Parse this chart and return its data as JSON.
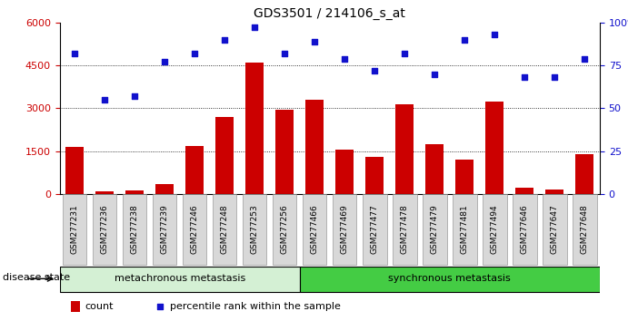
{
  "title": "GDS3501 / 214106_s_at",
  "samples": [
    "GSM277231",
    "GSM277236",
    "GSM277238",
    "GSM277239",
    "GSM277246",
    "GSM277248",
    "GSM277253",
    "GSM277256",
    "GSM277466",
    "GSM277469",
    "GSM277477",
    "GSM277478",
    "GSM277479",
    "GSM277481",
    "GSM277494",
    "GSM277646",
    "GSM277647",
    "GSM277648"
  ],
  "counts": [
    1650,
    100,
    130,
    350,
    1700,
    2700,
    4600,
    2950,
    3300,
    1550,
    1300,
    3150,
    1750,
    1200,
    3250,
    230,
    160,
    1400
  ],
  "percentiles": [
    82,
    55,
    57,
    77,
    82,
    90,
    97,
    82,
    89,
    79,
    72,
    82,
    70,
    90,
    93,
    68,
    68,
    79
  ],
  "group1_count": 8,
  "group1_label": "metachronous metastasis",
  "group2_label": "synchronous metastasis",
  "bar_color": "#cc0000",
  "dot_color": "#1111cc",
  "group1_bg": "#d4f0d4",
  "group2_bg": "#44cc44",
  "ylim_left": [
    0,
    6000
  ],
  "ylim_right": [
    0,
    100
  ],
  "yticks_left": [
    0,
    1500,
    3000,
    4500,
    6000
  ],
  "ytick_left_labels": [
    "0",
    "1500",
    "3000",
    "4500",
    "6000"
  ],
  "yticks_right": [
    0,
    25,
    50,
    75,
    100
  ],
  "ytick_right_labels": [
    "0",
    "25",
    "50",
    "75",
    "100%"
  ],
  "legend_count": "count",
  "legend_percentile": "percentile rank within the sample",
  "disease_state_label": "disease state"
}
